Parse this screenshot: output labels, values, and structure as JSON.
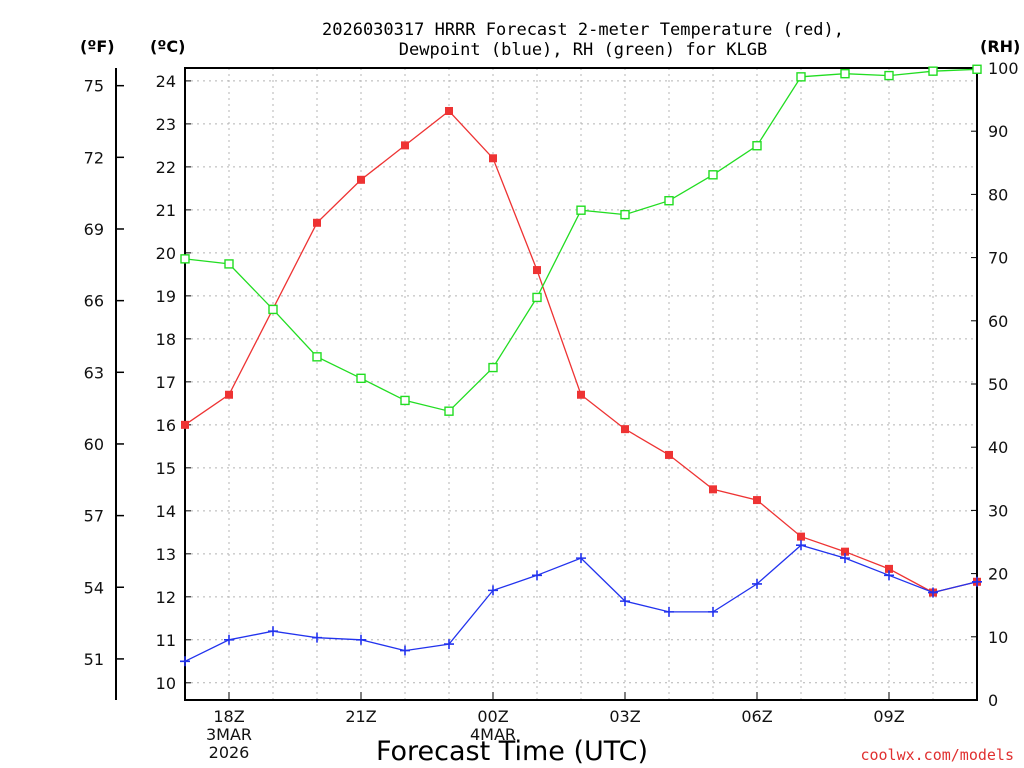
{
  "chart_data": {
    "type": "line",
    "title_line1": "2026030317 HRRR Forecast 2-meter Temperature (red),",
    "title_line2": "Dewpoint (blue), RH (green) for KLGB",
    "left_unit_f": "(ºF)",
    "left_unit_c": "(ºC)",
    "right_unit": "(RH)",
    "xlabel": "Forecast Time (UTC)",
    "credit": "coolwx.com/models",
    "x_hours": [
      17,
      18,
      19,
      20,
      21,
      22,
      23,
      24,
      25,
      26,
      27,
      28,
      29,
      30,
      31,
      32,
      33,
      34,
      35
    ],
    "x_ticks": [
      {
        "hour": 18,
        "lines": [
          "18Z",
          "3MAR",
          "2026"
        ]
      },
      {
        "hour": 21,
        "lines": [
          "21Z"
        ]
      },
      {
        "hour": 24,
        "lines": [
          "00Z",
          "4MAR"
        ]
      },
      {
        "hour": 27,
        "lines": [
          "03Z"
        ]
      },
      {
        "hour": 30,
        "lines": [
          "06Z"
        ]
      },
      {
        "hour": 33,
        "lines": [
          "09Z"
        ]
      }
    ],
    "celsius_ticks": [
      "10",
      "11",
      "12",
      "13",
      "14",
      "15",
      "16",
      "17",
      "18",
      "19",
      "20",
      "21",
      "22",
      "23",
      "24"
    ],
    "fahrenheit_ticks": [
      "51",
      "54",
      "57",
      "60",
      "63",
      "66",
      "69",
      "72",
      "75"
    ],
    "rh_ticks": [
      "0",
      "10",
      "20",
      "30",
      "40",
      "50",
      "60",
      "70",
      "80",
      "90",
      "100"
    ],
    "ylim_c": [
      9.6,
      24.3
    ],
    "ylim_rh": [
      0,
      100
    ],
    "series": [
      {
        "name": "Temperature",
        "color": "#ee3333",
        "marker": "filled-square",
        "axis": "c",
        "values": [
          16.0,
          16.7,
          18.7,
          20.7,
          21.7,
          22.5,
          23.3,
          22.2,
          19.6,
          16.7,
          15.9,
          15.3,
          14.5,
          14.25,
          13.4,
          13.05,
          12.65,
          12.1,
          12.35
        ]
      },
      {
        "name": "Dewpoint",
        "color": "#2233ee",
        "marker": "plus",
        "axis": "c",
        "values": [
          10.5,
          11.0,
          11.2,
          11.05,
          11.0,
          10.75,
          10.9,
          12.15,
          12.5,
          12.9,
          11.9,
          11.65,
          11.65,
          12.3,
          13.2,
          12.9,
          12.5,
          12.1,
          12.35
        ]
      },
      {
        "name": "RH",
        "color": "#22dd22",
        "marker": "open-square",
        "axis": "rh",
        "values": [
          69.8,
          69.0,
          61.8,
          54.3,
          50.9,
          47.4,
          45.7,
          52.6,
          63.7,
          77.5,
          76.8,
          79.0,
          83.1,
          87.7,
          98.6,
          99.1,
          98.8,
          99.5,
          99.8
        ]
      }
    ]
  }
}
